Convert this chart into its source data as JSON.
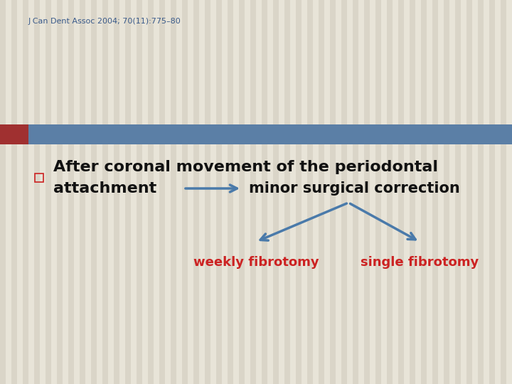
{
  "bg_color": "#e8e4d8",
  "stripe_color": "#dad5c8",
  "header_bar_color": "#5b7fa6",
  "header_bar_left_accent": "#a03030",
  "citation_text": "J Can Dent Assoc 2004; 70(11):775–80",
  "citation_color": "#3a5a8a",
  "citation_fontsize": 8,
  "bullet_color": "#cc2222",
  "main_text_line1": "After coronal movement of the periodontal",
  "main_text_line2": "attachment",
  "main_text_color": "#111111",
  "main_text_fontsize": 16,
  "arrow_color": "#4a7aaa",
  "label_surgical": "minor surgical correction",
  "label_surgical_color": "#111111",
  "label_surgical_fontsize": 15,
  "label_weekly": "weekly fibrotomy",
  "label_weekly_color": "#cc2222",
  "label_weekly_fontsize": 13,
  "label_single": "single fibrotomy",
  "label_single_color": "#cc2222",
  "label_single_fontsize": 13
}
